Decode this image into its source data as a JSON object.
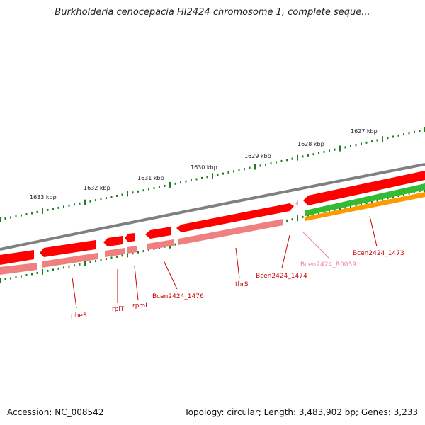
{
  "title": "Burkholderia cenocepacia HI2424 chromosome 1, complete seque...",
  "footer": {
    "accession": "Accession: NC_008542",
    "summary": "Topology: circular; Length: 3,483,902 bp; Genes: 3,233"
  },
  "colors": {
    "gene_forward": "#ff0000",
    "gene_shadow": "#f08080",
    "backbone": "#808080",
    "rna_gene": "#f4a0c0",
    "cds_green": "#33bb33",
    "cds_orange": "#ff9900",
    "tick": "#1e7d1e",
    "label_red": "#cc0000",
    "label_pink": "#f47fae"
  },
  "scale_labels": [
    "1633 kbp",
    "1632 kbp",
    "1631 kbp",
    "1630 kbp",
    "1629 kbp",
    "1628 kbp",
    "1627 kbp"
  ],
  "gene_labels": [
    "pheS",
    "rplT",
    "rpmI",
    "Bcen2424_1476",
    "thrS",
    "Bcen2424_1474",
    "Bcen2424_R0039",
    "Bcen2424_1473"
  ]
}
